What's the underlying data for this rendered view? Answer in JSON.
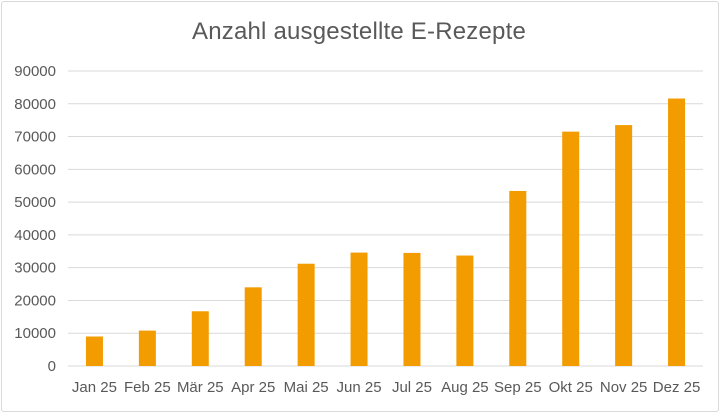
{
  "chart_data": {
    "type": "bar",
    "title": "Anzahl ausgestellte E-Rezepte",
    "xlabel": "",
    "ylabel": "",
    "categories": [
      "Jan 25",
      "Feb 25",
      "Mär 25",
      "Apr 25",
      "Mai 25",
      "Jun 25",
      "Jul 25",
      "Aug 25",
      "Sep 25",
      "Okt 25",
      "Nov 25",
      "Dez 25"
    ],
    "values": [
      9000,
      10800,
      16700,
      24000,
      31200,
      34600,
      34500,
      33700,
      53400,
      71500,
      73500,
      81600
    ],
    "ylim": [
      0,
      90000
    ],
    "yticks": [
      0,
      10000,
      20000,
      30000,
      40000,
      50000,
      60000,
      70000,
      80000,
      90000
    ],
    "grid": true,
    "legend": "none",
    "colors": {
      "bar": "#f39c00",
      "grid": "#d9d9d9",
      "text": "#595959"
    }
  }
}
